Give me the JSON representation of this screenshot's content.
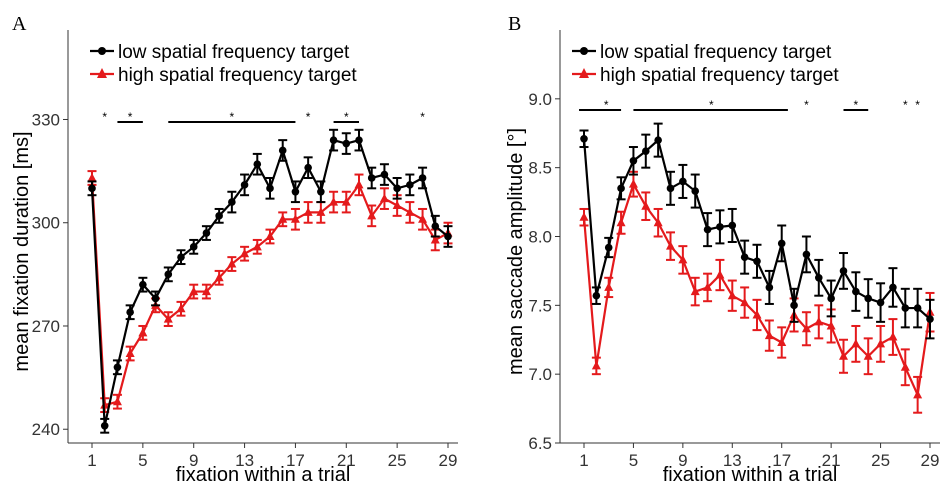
{
  "chart_data": [
    {
      "type": "line",
      "panel_label": "A",
      "xlabel": "fixation within a trial",
      "ylabel": "mean fixation duration [ms]",
      "xlim": [
        1,
        29
      ],
      "ylim": [
        236,
        356
      ],
      "xticks": [
        1,
        5,
        9,
        13,
        17,
        21,
        25,
        29
      ],
      "yticks": [
        240,
        270,
        300,
        330
      ],
      "legend_position": "top",
      "x": [
        1,
        2,
        3,
        4,
        5,
        6,
        7,
        8,
        9,
        10,
        11,
        12,
        13,
        14,
        15,
        16,
        17,
        18,
        19,
        20,
        21,
        22,
        23,
        24,
        25,
        26,
        27,
        28,
        29
      ],
      "series": [
        {
          "name": "low spatial frequency target",
          "color": "#000000",
          "marker": "circle",
          "values": [
            310,
            241,
            258,
            274,
            282,
            278,
            285,
            290,
            293,
            297,
            302,
            306,
            311,
            317,
            310,
            321,
            309,
            316,
            309,
            324,
            323,
            324,
            313,
            314,
            310,
            311,
            313,
            299,
            296
          ],
          "errors": [
            2,
            2,
            2,
            2,
            2,
            2,
            2,
            2,
            2,
            2,
            2,
            3,
            3,
            3,
            3,
            3,
            3,
            3,
            3,
            3,
            3,
            3,
            3,
            3,
            3,
            3,
            3,
            3,
            3
          ]
        },
        {
          "name": "high spatial frequency target",
          "color": "#e41a1c",
          "marker": "triangle",
          "values": [
            313,
            247,
            248,
            262,
            268,
            276,
            272,
            275,
            280,
            280,
            284,
            288,
            291,
            293,
            296,
            301,
            301,
            303,
            303,
            306,
            306,
            311,
            302,
            307,
            305,
            303,
            301,
            295,
            297
          ],
          "errors": [
            2,
            2,
            2,
            2,
            2,
            2,
            2,
            2,
            2,
            2,
            2,
            2,
            2,
            2,
            2,
            2,
            3,
            3,
            3,
            3,
            3,
            3,
            3,
            3,
            3,
            3,
            3,
            3,
            3
          ]
        }
      ],
      "significance_bars": [
        {
          "from": 3,
          "to": 5
        },
        {
          "from": 7,
          "to": 17
        },
        {
          "from": 20,
          "to": 22
        }
      ],
      "significance_stars": [
        {
          "x": 2,
          "text": "*",
          "color": "#e41a1c"
        },
        {
          "x": 4,
          "text": "*",
          "color": "#000000"
        },
        {
          "x": 12,
          "text": "*",
          "color": "#000000"
        },
        {
          "x": 18,
          "text": "*",
          "color": "#000000"
        },
        {
          "x": 21,
          "text": "*",
          "color": "#000000"
        },
        {
          "x": 27,
          "text": "*",
          "color": "#000000"
        }
      ]
    },
    {
      "type": "line",
      "panel_label": "B",
      "xlabel": "fixation within a trial",
      "ylabel": "mean saccade amplitude [°]",
      "xlim": [
        1,
        29
      ],
      "ylim": [
        6.5,
        9.5
      ],
      "xticks": [
        1,
        5,
        9,
        13,
        17,
        21,
        25,
        29
      ],
      "yticks": [
        6.5,
        7.0,
        7.5,
        8.0,
        8.5,
        9.0
      ],
      "ytick_labels": [
        "6.5",
        "7.0",
        "7.5",
        "8.0",
        "8.5",
        "9.0"
      ],
      "legend_position": "top",
      "x": [
        1,
        2,
        3,
        4,
        5,
        6,
        7,
        8,
        9,
        10,
        11,
        12,
        13,
        14,
        15,
        16,
        17,
        18,
        19,
        20,
        21,
        22,
        23,
        24,
        25,
        26,
        27,
        28,
        29
      ],
      "series": [
        {
          "name": "low spatial frequency target",
          "color": "#000000",
          "marker": "circle",
          "values": [
            8.71,
            7.57,
            7.92,
            8.35,
            8.55,
            8.62,
            8.7,
            8.35,
            8.4,
            8.33,
            8.05,
            8.07,
            8.08,
            7.85,
            7.82,
            7.63,
            7.95,
            7.5,
            7.87,
            7.7,
            7.55,
            7.75,
            7.6,
            7.55,
            7.52,
            7.63,
            7.48,
            7.48,
            7.4
          ],
          "errors": [
            0.06,
            0.06,
            0.07,
            0.08,
            0.1,
            0.12,
            0.12,
            0.12,
            0.12,
            0.12,
            0.12,
            0.12,
            0.12,
            0.12,
            0.12,
            0.12,
            0.13,
            0.12,
            0.13,
            0.13,
            0.13,
            0.13,
            0.14,
            0.14,
            0.14,
            0.14,
            0.14,
            0.14,
            0.14
          ]
        },
        {
          "name": "high spatial frequency target",
          "color": "#e41a1c",
          "marker": "triangle",
          "values": [
            8.14,
            7.06,
            7.63,
            8.1,
            8.38,
            8.22,
            8.1,
            7.93,
            7.83,
            7.6,
            7.63,
            7.72,
            7.57,
            7.52,
            7.43,
            7.28,
            7.23,
            7.43,
            7.33,
            7.38,
            7.35,
            7.13,
            7.22,
            7.13,
            7.22,
            7.27,
            7.05,
            6.85,
            7.45
          ],
          "errors": [
            0.06,
            0.06,
            0.07,
            0.08,
            0.09,
            0.1,
            0.1,
            0.1,
            0.1,
            0.1,
            0.1,
            0.11,
            0.11,
            0.11,
            0.11,
            0.11,
            0.11,
            0.12,
            0.12,
            0.12,
            0.12,
            0.12,
            0.13,
            0.13,
            0.13,
            0.13,
            0.13,
            0.13,
            0.14
          ]
        }
      ],
      "significance_bars": [
        {
          "from": 0.6,
          "to": 4
        },
        {
          "from": 5,
          "to": 17.5
        },
        {
          "from": 22,
          "to": 24
        }
      ],
      "significance_stars": [
        {
          "x": 2.8,
          "text": "*",
          "color": "#000000"
        },
        {
          "x": 11.3,
          "text": "*",
          "color": "#000000"
        },
        {
          "x": 19,
          "text": "*",
          "color": "#000000"
        },
        {
          "x": 23,
          "text": "*",
          "color": "#000000"
        },
        {
          "x": 27,
          "text": "*",
          "color": "#000000"
        },
        {
          "x": 28,
          "text": "*",
          "color": "#000000"
        }
      ]
    }
  ]
}
